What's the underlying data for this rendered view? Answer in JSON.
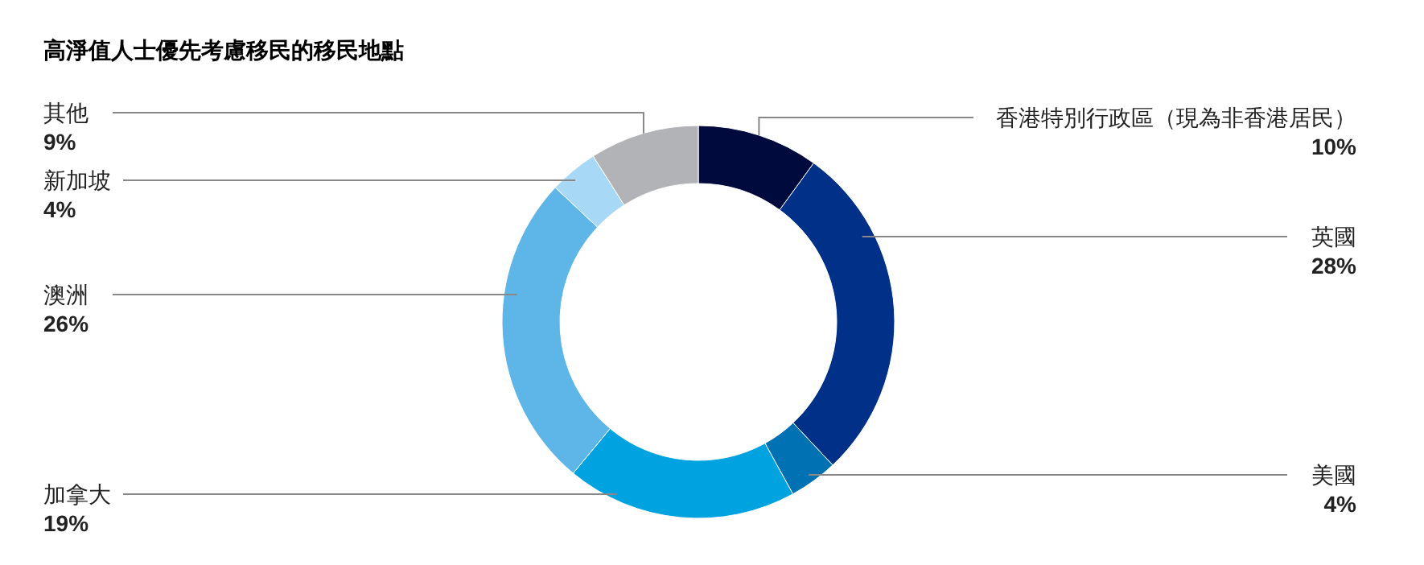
{
  "chart_data": {
    "type": "donut",
    "title": "高淨值人士優先考慮移民的移民地點",
    "categories": [
      "香港特別行政區（現為非香港居民）",
      "英國",
      "美國",
      "加拿大",
      "澳洲",
      "新加坡",
      "其他"
    ],
    "values": [
      10,
      28,
      4,
      19,
      26,
      4,
      9
    ],
    "value_labels": [
      "10%",
      "28%",
      "4%",
      "19%",
      "26%",
      "4%",
      "9%"
    ],
    "colors": [
      "#000a3c",
      "#003087",
      "#0071b3",
      "#00a3e0",
      "#5eb6e8",
      "#a7d8f5",
      "#b1b3b6"
    ]
  }
}
